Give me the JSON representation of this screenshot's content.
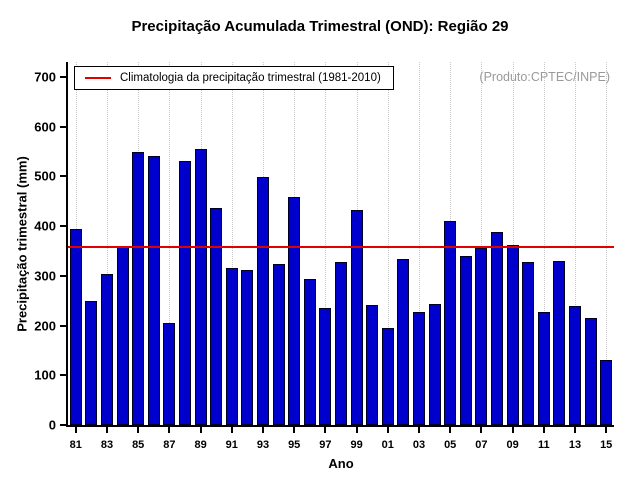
{
  "title": "Precipitação Acumulada Trimestral (OND): Região 29",
  "legend": {
    "label": "Climatologia da precipitação trimestral (1981-2010)"
  },
  "watermark": "(Produto:CPTEC/INPE)",
  "chart_data": {
    "type": "bar",
    "title": "Precipitação Acumulada Trimestral (OND): Região 29",
    "xlabel": "Ano",
    "ylabel": "Precipitação trimestral (mm)",
    "ylim": [
      0,
      730
    ],
    "yticks": [
      0,
      100,
      200,
      300,
      400,
      500,
      600,
      700
    ],
    "grid": "vertical dotted lines at labeled years",
    "legend_position": "top-left inside plot",
    "bar_color": "#0000cc",
    "climatology_line_color": "#e00000",
    "climatology_value": 358,
    "years": [
      1981,
      1982,
      1983,
      1984,
      1985,
      1986,
      1987,
      1988,
      1989,
      1990,
      1991,
      1992,
      1993,
      1994,
      1995,
      1996,
      1997,
      1998,
      1999,
      2000,
      2001,
      2002,
      2003,
      2004,
      2005,
      2006,
      2007,
      2008,
      2009,
      2010,
      2011,
      2012,
      2013,
      2014,
      2015
    ],
    "x_tick_labels": [
      "81",
      "83",
      "85",
      "87",
      "89",
      "91",
      "93",
      "95",
      "97",
      "99",
      "01",
      "03",
      "05",
      "07",
      "09",
      "11",
      "13",
      "15"
    ],
    "values": [
      395,
      250,
      303,
      360,
      550,
      542,
      205,
      530,
      555,
      437,
      315,
      312,
      498,
      323,
      458,
      293,
      235,
      328,
      432,
      242,
      195,
      333,
      228,
      243,
      410,
      340,
      355,
      388,
      362,
      327,
      228,
      330,
      240,
      215,
      130
    ]
  }
}
